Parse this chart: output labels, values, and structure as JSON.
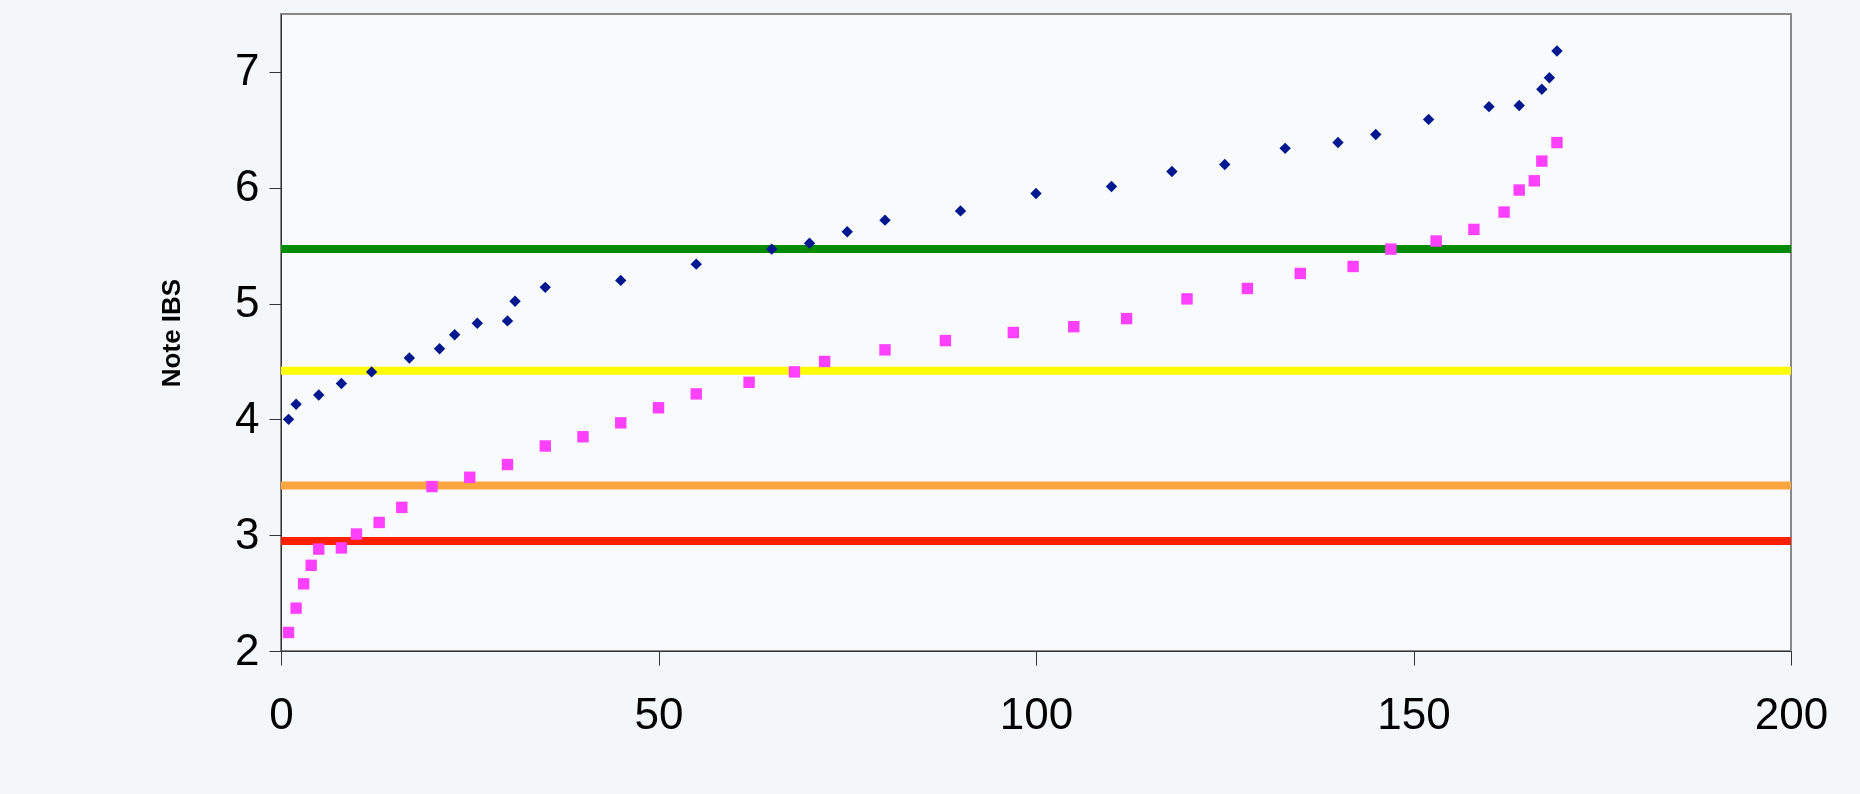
{
  "chart_data": {
    "type": "scatter",
    "ylabel": "Note IBS",
    "xlim": [
      0,
      200
    ],
    "xticks": [
      0,
      50,
      100,
      150,
      200
    ],
    "ylim": [
      2,
      7.5
    ],
    "yticks": [
      2,
      3,
      4,
      5,
      6,
      7
    ],
    "grid": false,
    "series": [
      {
        "color": "#00188f",
        "marker": "diamond",
        "x": [
          1,
          2,
          5,
          8,
          12,
          17,
          21,
          23,
          26,
          30,
          31,
          35,
          45,
          55,
          65,
          70,
          75,
          80,
          90,
          100,
          110,
          118,
          125,
          133,
          140,
          145,
          152,
          160,
          164,
          167,
          168,
          169
        ],
        "values": [
          4.0,
          4.13,
          4.21,
          4.31,
          4.41,
          4.53,
          4.61,
          4.73,
          4.83,
          4.85,
          5.02,
          5.14,
          5.2,
          5.34,
          5.47,
          5.52,
          5.62,
          5.72,
          5.8,
          5.95,
          6.01,
          6.14,
          6.2,
          6.34,
          6.39,
          6.46,
          6.59,
          6.7,
          6.71,
          6.85,
          6.95,
          7.18
        ]
      },
      {
        "color": "#ff40ff",
        "marker": "square",
        "x": [
          1,
          2,
          3,
          4,
          5,
          8,
          10,
          13,
          16,
          20,
          25,
          30,
          35,
          40,
          45,
          50,
          55,
          62,
          68,
          72,
          80,
          88,
          97,
          105,
          112,
          120,
          128,
          135,
          142,
          147,
          153,
          158,
          162,
          164,
          166,
          167,
          169
        ],
        "values": [
          2.16,
          2.37,
          2.58,
          2.74,
          2.88,
          2.89,
          3.01,
          3.11,
          3.24,
          3.42,
          3.5,
          3.61,
          3.77,
          3.85,
          3.97,
          4.1,
          4.22,
          4.32,
          4.41,
          4.5,
          4.6,
          4.68,
          4.75,
          4.8,
          4.87,
          5.04,
          5.13,
          5.26,
          5.32,
          5.47,
          5.54,
          5.64,
          5.79,
          5.98,
          6.06,
          6.23,
          6.39
        ]
      }
    ],
    "ref_lines": [
      {
        "axis": "y",
        "value": 5.47,
        "color": "#008a00"
      },
      {
        "axis": "y",
        "value": 4.42,
        "color": "#ffff00"
      },
      {
        "axis": "y",
        "value": 3.43,
        "color": "#ffa640"
      },
      {
        "axis": "y",
        "value": 2.95,
        "color": "#ff2000"
      }
    ]
  }
}
